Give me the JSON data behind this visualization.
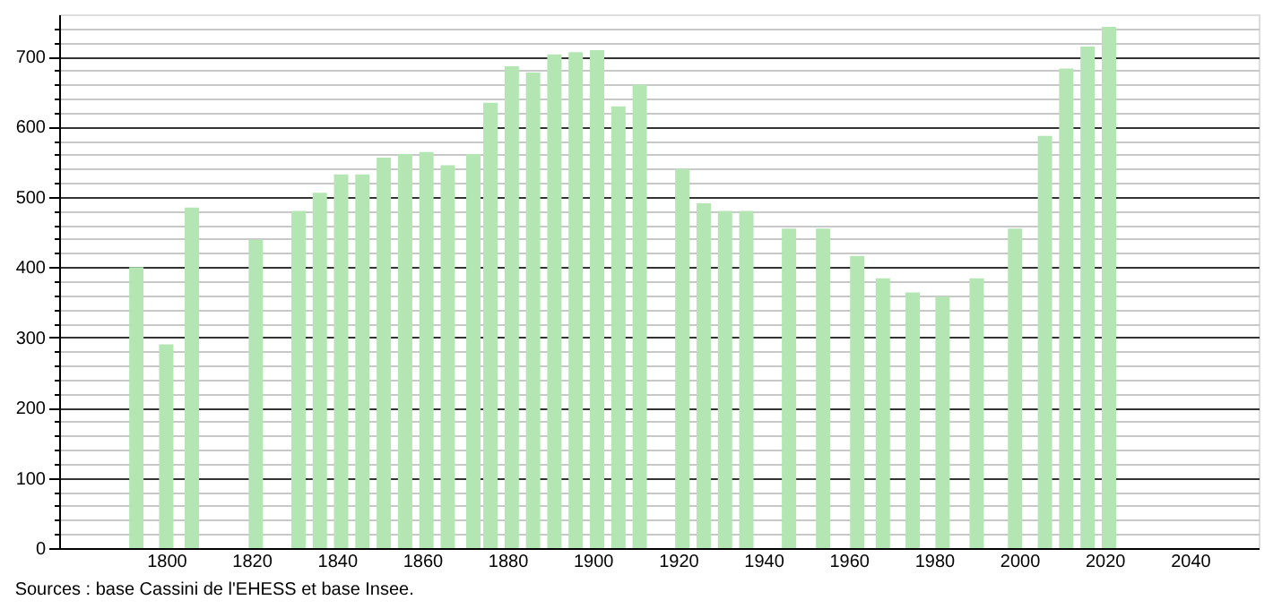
{
  "chart_data": {
    "type": "bar",
    "x": [
      1793,
      1800,
      1806,
      1821,
      1831,
      1836,
      1841,
      1846,
      1851,
      1856,
      1861,
      1866,
      1872,
      1876,
      1881,
      1886,
      1891,
      1896,
      1901,
      1906,
      1911,
      1921,
      1926,
      1931,
      1936,
      1946,
      1954,
      1962,
      1968,
      1975,
      1982,
      1990,
      1999,
      2006,
      2011,
      2016,
      2021
    ],
    "values": [
      400,
      290,
      485,
      439,
      480,
      506,
      532,
      532,
      556,
      561,
      564,
      545,
      561,
      634,
      686,
      677,
      703,
      706,
      709,
      629,
      660,
      540,
      491,
      480,
      480,
      455,
      455,
      416,
      384,
      364,
      358,
      384,
      455,
      587,
      683,
      714,
      742
    ],
    "color": "#b3e6b3",
    "xlim": [
      1777,
      2054
    ],
    "xticks": [
      1800,
      1820,
      1840,
      1860,
      1880,
      1900,
      1920,
      1940,
      1960,
      1980,
      2000,
      2020,
      2040
    ],
    "ylim": [
      0,
      760
    ],
    "yticks": [
      0,
      {
        "value": 20,
        "label": null
      },
      {
        "value": 40,
        "label": null
      },
      {
        "value": 60,
        "label": null
      },
      {
        "value": 80,
        "label": null
      },
      100,
      {
        "value": 120,
        "label": null
      },
      {
        "value": 140,
        "label": null
      },
      {
        "value": 160,
        "label": null
      },
      {
        "value": 180,
        "label": null
      },
      200,
      {
        "value": 220,
        "label": null
      },
      {
        "value": 240,
        "label": null
      },
      {
        "value": 260,
        "label": null
      },
      {
        "value": 280,
        "label": null
      },
      300,
      {
        "value": 320,
        "label": null
      },
      {
        "value": 340,
        "label": null
      },
      {
        "value": 360,
        "label": null
      },
      {
        "value": 380,
        "label": null
      },
      400,
      {
        "value": 420,
        "label": null
      },
      {
        "value": 440,
        "label": null
      },
      {
        "value": 460,
        "label": null
      },
      {
        "value": 480,
        "label": null
      },
      500,
      {
        "value": 520,
        "label": null
      },
      {
        "value": 540,
        "label": null
      },
      {
        "value": 560,
        "label": null
      },
      {
        "value": 580,
        "label": null
      },
      600,
      {
        "value": 620,
        "label": null
      },
      {
        "value": 640,
        "label": null
      },
      {
        "value": 660,
        "label": null
      },
      {
        "value": 680,
        "label": null
      },
      700,
      {
        "value": 720,
        "label": null
      },
      {
        "value": 740,
        "label": null
      }
    ],
    "grid": "y",
    "annotations": [
      "Sources : base Cassini de l'EHESS et base Insee."
    ]
  }
}
